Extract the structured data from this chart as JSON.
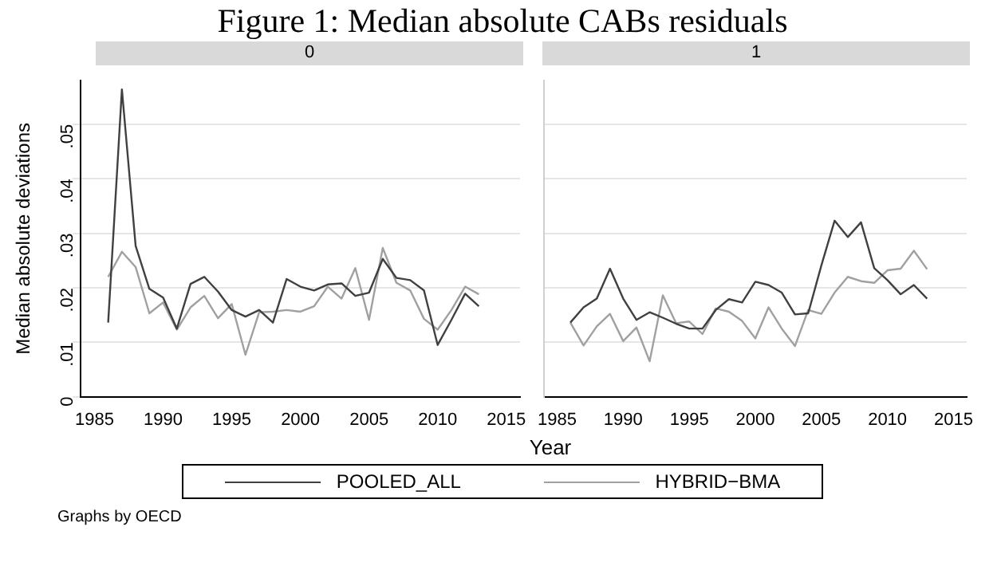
{
  "chart_data": [
    {
      "type": "line",
      "title": "Figure 1: Median absolute CABs residuals",
      "subtitle": "0",
      "xlabel": "Year",
      "ylabel": "Median absolute deviations",
      "annotations": [
        "Graphs by OECD"
      ],
      "x": [
        1986,
        1987,
        1988,
        1989,
        1990,
        1991,
        1992,
        1993,
        1994,
        1995,
        1996,
        1997,
        1998,
        1999,
        2000,
        2001,
        2002,
        2003,
        2004,
        2005,
        2006,
        2007,
        2008,
        2009,
        2010,
        2011,
        2012,
        2013
      ],
      "series": [
        {
          "name": "POOLED_ALL",
          "color": "#404040",
          "values": [
            0.0136,
            0.0564,
            0.0277,
            0.0198,
            0.0182,
            0.0125,
            0.0207,
            0.022,
            0.0193,
            0.0159,
            0.0147,
            0.0159,
            0.0136,
            0.0216,
            0.0202,
            0.0195,
            0.0206,
            0.0208,
            0.0185,
            0.0191,
            0.0253,
            0.0218,
            0.0214,
            0.0195,
            0.0095,
            0.0141,
            0.0189,
            0.0166
          ]
        },
        {
          "name": "HYBRID−BMA",
          "color": "#a0a0a0",
          "values": [
            0.022,
            0.0266,
            0.0238,
            0.0153,
            0.0173,
            0.0123,
            0.0164,
            0.0185,
            0.0144,
            0.017,
            0.0077,
            0.0155,
            0.0156,
            0.0159,
            0.0156,
            0.0166,
            0.0202,
            0.018,
            0.0236,
            0.0141,
            0.0273,
            0.0209,
            0.0195,
            0.0143,
            0.0123,
            0.0159,
            0.0202,
            0.0188
          ]
        }
      ],
      "xlim": [
        1984,
        2016
      ],
      "xticks": [
        1985,
        1990,
        1995,
        2000,
        2005,
        2010,
        2015
      ],
      "ylim": [
        0,
        0.058
      ],
      "yticks": [
        0,
        {
          "value": 0.01,
          "label": ".01"
        },
        {
          "value": 0.02,
          "label": ".02"
        },
        {
          "value": 0.03,
          "label": ".03"
        },
        {
          "value": 0.04,
          "label": ".04"
        },
        {
          "value": 0.05,
          "label": ".05"
        }
      ],
      "grid": "y",
      "legend": "bottom",
      "marker": "none",
      "line_style": "solid"
    },
    {
      "type": "line",
      "subtitle": "1",
      "x": [
        1986,
        1987,
        1988,
        1989,
        1990,
        1991,
        1992,
        1993,
        1994,
        1995,
        1996,
        1997,
        1998,
        1999,
        2000,
        2001,
        2002,
        2003,
        2004,
        2005,
        2006,
        2007,
        2008,
        2009,
        2010,
        2011,
        2012,
        2013
      ],
      "series": [
        {
          "color": "#404040",
          "values": [
            0.0136,
            0.0164,
            0.018,
            0.0235,
            0.018,
            0.0141,
            0.0155,
            0.0145,
            0.0134,
            0.0125,
            0.0125,
            0.0159,
            0.0179,
            0.0173,
            0.0211,
            0.0205,
            0.0191,
            0.0151,
            0.0153,
            0.0241,
            0.0323,
            0.0293,
            0.032,
            0.0236,
            0.0214,
            0.0188,
            0.0205,
            0.018
          ]
        },
        {
          "color": "#a0a0a0",
          "values": [
            0.0136,
            0.0094,
            0.0129,
            0.0152,
            0.0102,
            0.0127,
            0.0065,
            0.0186,
            0.0135,
            0.0138,
            0.0115,
            0.0162,
            0.0156,
            0.0139,
            0.0107,
            0.0164,
            0.0125,
            0.0093,
            0.0159,
            0.0152,
            0.0191,
            0.022,
            0.0212,
            0.0209,
            0.0232,
            0.0235,
            0.0268,
            0.0234
          ]
        }
      ],
      "xlim": [
        1984,
        2016
      ],
      "xticks": [
        1985,
        1990,
        1995,
        2000,
        2005,
        2010,
        2015
      ],
      "ylim": [
        0,
        0.058
      ],
      "yticks": [
        0,
        0.01,
        0.02,
        0.03,
        0.04,
        0.05
      ],
      "grid": "y",
      "tick_labels": "x",
      "marker": "none",
      "line_style": "solid"
    }
  ]
}
